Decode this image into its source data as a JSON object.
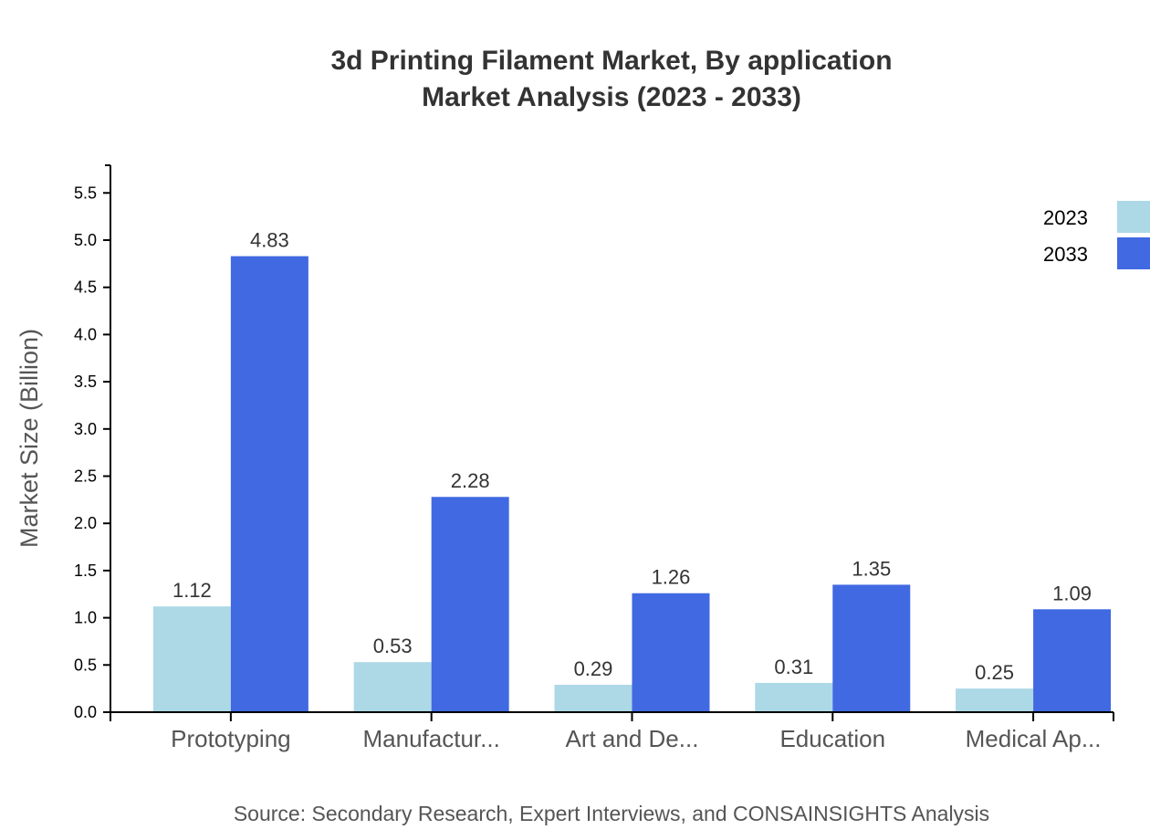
{
  "title": {
    "line1": "3d Printing Filament Market, By application",
    "line2": "Market Analysis (2023 - 2033)"
  },
  "source": "Source: Secondary Research, Expert Interviews, and CONSAINSIGHTS Analysis",
  "colors": {
    "2023": "#ADD8E6",
    "2033": "#4169E1",
    "axis": "#000000",
    "label_text": "#333333",
    "category_text": "#555555"
  },
  "chart_data": {
    "type": "bar",
    "title": "3d Printing Filament Market, By application Market Analysis (2023 - 2033)",
    "xlabel": "",
    "ylabel": "Market Size (Billion)",
    "ylim": [
      0,
      5.8
    ],
    "yticks": [
      "0.0",
      "0.5",
      "1.0",
      "1.5",
      "2.0",
      "2.5",
      "3.0",
      "3.5",
      "4.0",
      "4.5",
      "5.0",
      "5.5"
    ],
    "grid": false,
    "legend_position": "top-right",
    "categories": [
      "Prototyping",
      "Manufactur...",
      "Art and De...",
      "Education",
      "Medical Ap..."
    ],
    "series": [
      {
        "name": "2023",
        "color": "#ADD8E6",
        "values": [
          1.12,
          0.53,
          0.29,
          0.31,
          0.25
        ],
        "labels": [
          "1.12",
          "0.53",
          "0.29",
          "0.31",
          "0.25"
        ]
      },
      {
        "name": "2033",
        "color": "#4169E1",
        "values": [
          4.83,
          2.28,
          1.26,
          1.35,
          1.09
        ],
        "labels": [
          "4.83",
          "2.28",
          "1.26",
          "1.35",
          "1.09"
        ]
      }
    ]
  }
}
